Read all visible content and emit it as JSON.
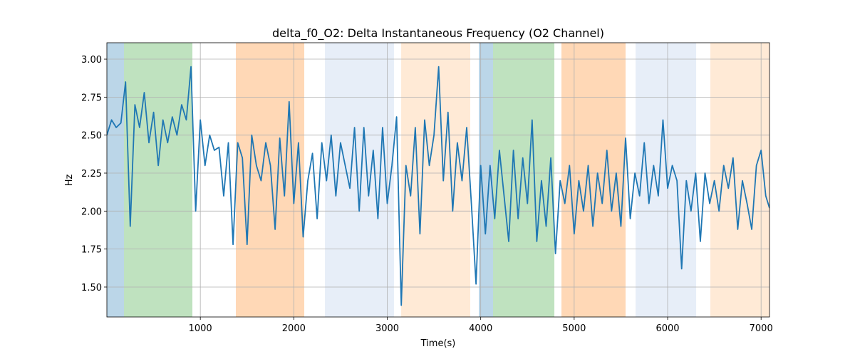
{
  "chart_data": {
    "type": "line",
    "title": "delta_f0_O2: Delta Instantaneous Frequency (O2 Channel)",
    "xlabel": "Time(s)",
    "ylabel": "Hz",
    "xlim": [
      0,
      7090
    ],
    "ylim": [
      1.303,
      3.108
    ],
    "xticks": [
      1000,
      2000,
      3000,
      4000,
      5000,
      6000,
      7000
    ],
    "yticks": [
      {
        "value": 1.5,
        "label": "1.50"
      },
      {
        "value": 1.75,
        "label": "1.75"
      },
      {
        "value": 2,
        "label": "2.00"
      },
      {
        "value": 2.25,
        "label": "2.25"
      },
      {
        "value": 2.5,
        "label": "2.50"
      },
      {
        "value": 2.75,
        "label": "2.75"
      },
      {
        "value": 3,
        "label": "3.00"
      }
    ],
    "grid": true,
    "spans": [
      {
        "x0": 0,
        "x1": 183,
        "color": "#1f77b4"
      },
      {
        "x0": 183,
        "x1": 915,
        "color": "#2ca02c"
      },
      {
        "x0": 1380,
        "x1": 2112,
        "color": "#ff7f0e"
      },
      {
        "x0": 2333,
        "x1": 3072,
        "color": "#aec7e8"
      },
      {
        "x0": 3149,
        "x1": 3888,
        "color": "#ffbb78"
      },
      {
        "x0": 3980,
        "x1": 4132,
        "color": "#1f77b4"
      },
      {
        "x0": 4132,
        "x1": 4788,
        "color": "#2ca02c"
      },
      {
        "x0": 4864,
        "x1": 5550,
        "color": "#ff7f0e"
      },
      {
        "x0": 5657,
        "x1": 6305,
        "color": "#aec7e8"
      },
      {
        "x0": 6457,
        "x1": 7090,
        "color": "#ffbb78"
      }
    ],
    "series": [
      {
        "name": "delta_f0_O2",
        "color": "#1f77b4",
        "x": [
          0,
          50,
          100,
          150,
          200,
          250,
          300,
          350,
          400,
          450,
          500,
          550,
          600,
          650,
          700,
          750,
          800,
          850,
          900,
          950,
          1000,
          1050,
          1100,
          1150,
          1200,
          1250,
          1300,
          1350,
          1400,
          1450,
          1500,
          1550,
          1600,
          1650,
          1700,
          1750,
          1800,
          1850,
          1900,
          1950,
          2000,
          2050,
          2100,
          2150,
          2200,
          2250,
          2300,
          2350,
          2400,
          2450,
          2500,
          2550,
          2600,
          2650,
          2700,
          2750,
          2800,
          2850,
          2900,
          2950,
          3000,
          3050,
          3100,
          3150,
          3200,
          3250,
          3300,
          3350,
          3400,
          3450,
          3500,
          3550,
          3600,
          3650,
          3700,
          3750,
          3800,
          3850,
          3900,
          3950,
          4000,
          4050,
          4100,
          4150,
          4200,
          4250,
          4300,
          4350,
          4400,
          4450,
          4500,
          4550,
          4600,
          4650,
          4700,
          4750,
          4800,
          4850,
          4900,
          4950,
          5000,
          5050,
          5100,
          5150,
          5200,
          5250,
          5300,
          5350,
          5400,
          5450,
          5500,
          5550,
          5600,
          5650,
          5700,
          5750,
          5800,
          5850,
          5900,
          5950,
          6000,
          6050,
          6100,
          6150,
          6200,
          6250,
          6300,
          6350,
          6400,
          6450,
          6500,
          6550,
          6600,
          6650,
          6700,
          6750,
          6800,
          6850,
          6900,
          6950,
          7000,
          7050,
          7090
        ],
        "values": [
          2.5,
          2.6,
          2.55,
          2.58,
          2.85,
          1.9,
          2.7,
          2.55,
          2.78,
          2.45,
          2.65,
          2.3,
          2.6,
          2.45,
          2.62,
          2.5,
          2.7,
          2.6,
          2.95,
          2.0,
          2.6,
          2.3,
          2.5,
          2.4,
          2.42,
          2.1,
          2.45,
          1.78,
          2.45,
          2.35,
          1.78,
          2.5,
          2.3,
          2.2,
          2.45,
          2.3,
          1.88,
          2.48,
          2.1,
          2.72,
          2.05,
          2.45,
          1.83,
          2.2,
          2.38,
          1.95,
          2.45,
          2.2,
          2.5,
          2.1,
          2.45,
          2.3,
          2.15,
          2.55,
          2.0,
          2.55,
          2.1,
          2.4,
          1.95,
          2.55,
          2.05,
          2.3,
          2.62,
          1.38,
          2.3,
          2.1,
          2.55,
          1.85,
          2.6,
          2.3,
          2.5,
          2.95,
          2.2,
          2.65,
          2.0,
          2.45,
          2.2,
          2.55,
          2.05,
          1.52,
          2.3,
          1.85,
          2.3,
          1.95,
          2.4,
          2.1,
          1.8,
          2.4,
          1.95,
          2.35,
          2.05,
          2.6,
          1.8,
          2.2,
          1.9,
          2.35,
          1.72,
          2.2,
          2.05,
          2.3,
          1.85,
          2.2,
          2.0,
          2.3,
          1.9,
          2.25,
          2.05,
          2.4,
          2.0,
          2.25,
          1.9,
          2.48,
          1.95,
          2.25,
          2.1,
          2.45,
          2.05,
          2.3,
          2.1,
          2.6,
          2.15,
          2.3,
          2.2,
          1.62,
          2.2,
          2.0,
          2.25,
          1.8,
          2.25,
          2.05,
          2.2,
          2.0,
          2.3,
          2.15,
          2.35,
          1.88,
          2.2,
          2.05,
          1.88,
          2.3,
          2.4,
          2.1,
          2.02
        ]
      }
    ]
  }
}
